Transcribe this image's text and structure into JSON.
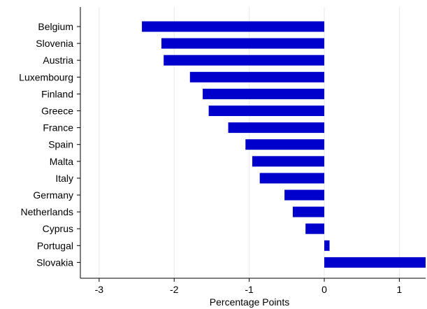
{
  "chart_data": {
    "type": "bar",
    "orientation": "horizontal",
    "categories": [
      "Belgium",
      "Slovenia",
      "Austria",
      "Luxembourg",
      "Finland",
      "Greece",
      "France",
      "Spain",
      "Malta",
      "Italy",
      "Germany",
      "Netherlands",
      "Cyprus",
      "Portugal",
      "Slovakia"
    ],
    "values": [
      -2.43,
      -2.17,
      -2.14,
      -1.79,
      -1.62,
      -1.54,
      -1.28,
      -1.05,
      -0.96,
      -0.86,
      -0.53,
      -0.42,
      -0.25,
      0.07,
      1.35
    ],
    "title": "",
    "xlabel": "Percentage Points",
    "ylabel": "",
    "xlim": [
      -3.25,
      1.35
    ],
    "xticks": [
      -3,
      -2,
      -1,
      0,
      1
    ],
    "xtick_labels": [
      "-3",
      "-2",
      "-1",
      "0",
      "1"
    ],
    "grid": "vertical",
    "bar_color": "#0000cc",
    "grid_color": "#e8e8e8"
  }
}
